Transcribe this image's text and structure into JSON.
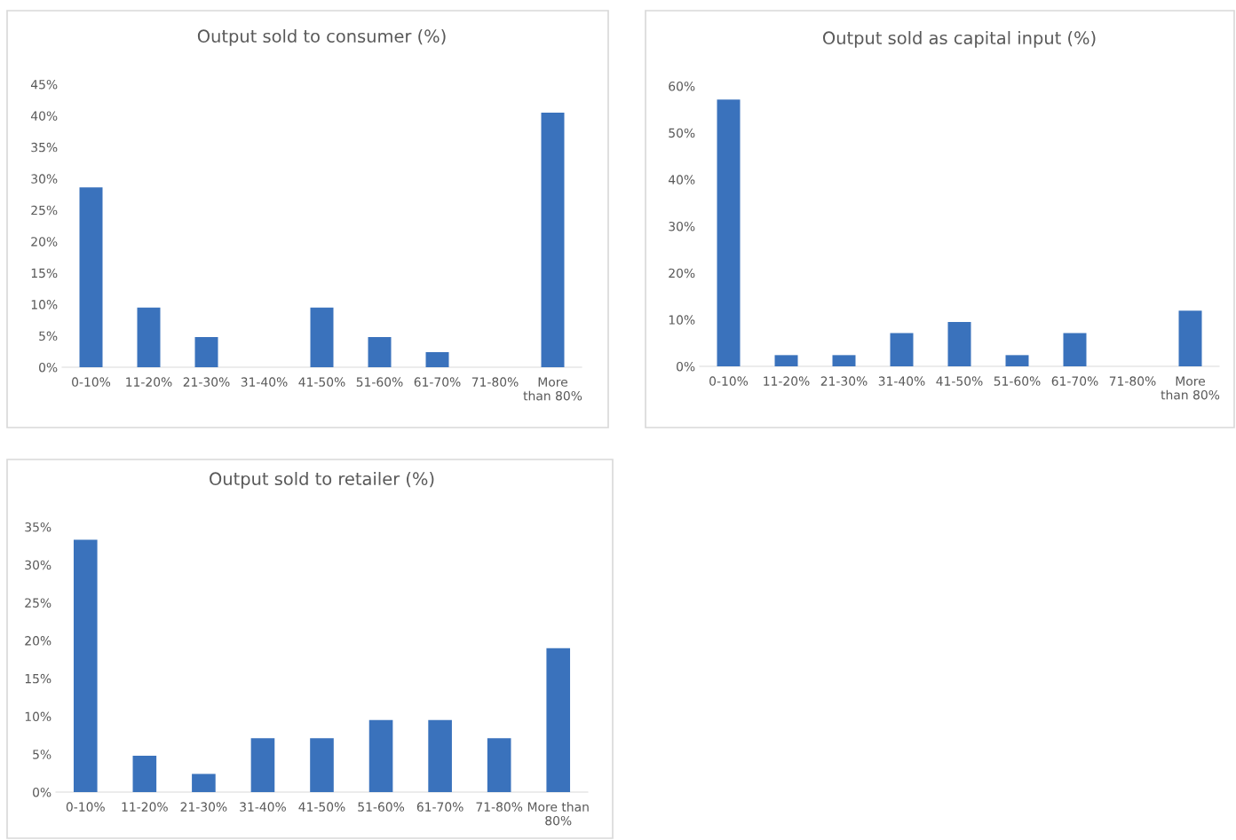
{
  "chart_data": [
    {
      "type": "bar",
      "title": "Output sold to consumer (%)",
      "categories": [
        "0-10%",
        "11-20%",
        "21-30%",
        "31-40%",
        "41-50%",
        "51-60%",
        "61-70%",
        "71-80%",
        "More\nthan 80%"
      ],
      "values": [
        28.6,
        9.5,
        4.8,
        0,
        9.5,
        4.8,
        2.4,
        0,
        40.5
      ],
      "color": "#3a72bc",
      "ylim": [
        0,
        45
      ],
      "yticks": [
        {
          "value": 0,
          "label": "0%"
        },
        {
          "value": 5,
          "label": "5%"
        },
        {
          "value": 10,
          "label": "10%"
        },
        {
          "value": 15,
          "label": "15%"
        },
        {
          "value": 20,
          "label": "20%"
        },
        {
          "value": 25,
          "label": "25%"
        },
        {
          "value": 30,
          "label": "30%"
        },
        {
          "value": 35,
          "label": "35%"
        },
        {
          "value": 40,
          "label": "40%"
        },
        {
          "value": 45,
          "label": "45%"
        }
      ],
      "grid": false
    },
    {
      "type": "bar",
      "title": "Output sold as capital input (%)",
      "categories": [
        "0-10%",
        "11-20%",
        "21-30%",
        "31-40%",
        "41-50%",
        "51-60%",
        "61-70%",
        "71-80%",
        "More\nthan 80%"
      ],
      "values": [
        57.1,
        2.4,
        2.4,
        7.1,
        9.5,
        2.4,
        7.1,
        0,
        11.9
      ],
      "color": "#3a72bc",
      "ylim": [
        0,
        60
      ],
      "yticks": [
        {
          "value": 0,
          "label": "0%"
        },
        {
          "value": 10,
          "label": "10%"
        },
        {
          "value": 20,
          "label": "20%"
        },
        {
          "value": 30,
          "label": "30%"
        },
        {
          "value": 40,
          "label": "40%"
        },
        {
          "value": 50,
          "label": "50%"
        },
        {
          "value": 60,
          "label": "60%"
        }
      ],
      "grid": false
    },
    {
      "type": "bar",
      "title": "Output sold to retailer (%)",
      "categories": [
        "0-10%",
        "11-20%",
        "21-30%",
        "31-40%",
        "41-50%",
        "51-60%",
        "61-70%",
        "71-80%",
        "More than\n80%"
      ],
      "values": [
        33.3,
        4.8,
        2.4,
        7.1,
        7.1,
        9.5,
        9.5,
        7.1,
        19.0
      ],
      "color": "#3a72bc",
      "ylim": [
        0,
        35
      ],
      "yticks": [
        {
          "value": 0,
          "label": "0%"
        },
        {
          "value": 5,
          "label": "5%"
        },
        {
          "value": 10,
          "label": "10%"
        },
        {
          "value": 15,
          "label": "15%"
        },
        {
          "value": 20,
          "label": "20%"
        },
        {
          "value": 25,
          "label": "25%"
        },
        {
          "value": 30,
          "label": "30%"
        },
        {
          "value": 35,
          "label": "35%"
        }
      ],
      "grid": false
    }
  ]
}
